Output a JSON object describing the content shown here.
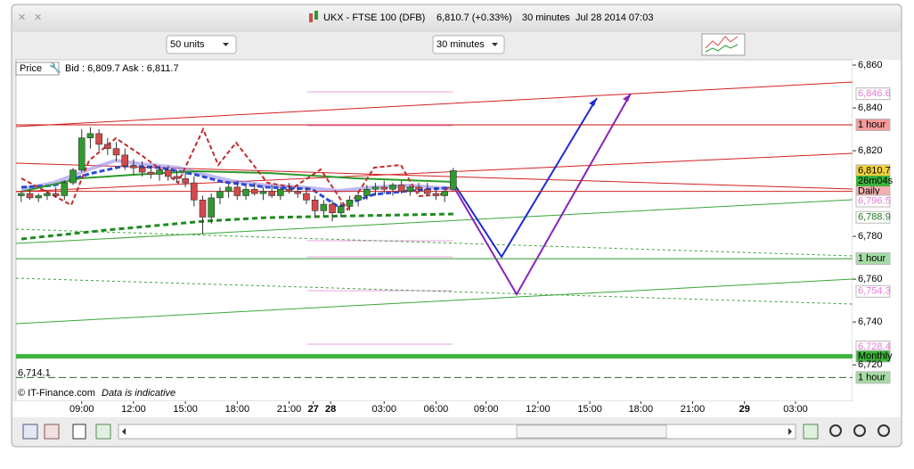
{
  "window": {
    "symbol": "UKX - FTSE 100 (DFB)",
    "price": "6,810.7 (+0.33%)",
    "interval": "30 minutes",
    "time": "Jul 28 2014 07:03"
  },
  "toolbar": {
    "units": "50 units",
    "interval": "30 minutes"
  },
  "chart_data": {
    "type": "candlestick",
    "legend": "Price",
    "quote": "Bid : 6,809.7  Ask : 6,811.7",
    "footer": "© IT-Finance.com",
    "note": "Data is indicative",
    "open": [
      6799,
      6800,
      6798,
      6799,
      6800,
      6799,
      6805,
      6811,
      6826,
      6828,
      6823,
      6821,
      6818,
      6813,
      6812,
      6810,
      6809,
      6811,
      6808,
      6807,
      6805,
      6797,
      6789,
      6798,
      6801,
      6803,
      6799,
      6802,
      6800,
      6801,
      6799,
      6802,
      6801,
      6800,
      6797,
      6792,
      6795,
      6791,
      6794,
      6797,
      6799,
      6802,
      6803,
      6802,
      6804,
      6801,
      6803,
      6802,
      6800,
      6799,
      6802
    ],
    "high": [
      6801,
      6802,
      6800,
      6801,
      6803,
      6806,
      6812,
      6830,
      6831,
      6830,
      6826,
      6824,
      6821,
      6816,
      6815,
      6813,
      6813,
      6813,
      6811,
      6810,
      6808,
      6799,
      6800,
      6803,
      6805,
      6806,
      6804,
      6805,
      6803,
      6804,
      6803,
      6805,
      6804,
      6803,
      6799,
      6797,
      6797,
      6796,
      6799,
      6801,
      6804,
      6805,
      6806,
      6805,
      6806,
      6804,
      6805,
      6805,
      6803,
      6802,
      6812
    ],
    "low": [
      6796,
      6797,
      6796,
      6797,
      6798,
      6797,
      6804,
      6810,
      6821,
      6820,
      6818,
      6815,
      6811,
      6809,
      6808,
      6807,
      6806,
      6806,
      6805,
      6803,
      6794,
      6781,
      6786,
      6795,
      6798,
      6797,
      6797,
      6799,
      6797,
      6798,
      6797,
      6800,
      6798,
      6795,
      6789,
      6789,
      6787,
      6789,
      6792,
      6794,
      6797,
      6799,
      6800,
      6799,
      6800,
      6799,
      6800,
      6799,
      6797,
      6796,
      6801
    ],
    "close": [
      6800,
      6798,
      6799,
      6800,
      6799,
      6805,
      6811,
      6826,
      6828,
      6823,
      6821,
      6818,
      6813,
      6812,
      6810,
      6809,
      6811,
      6808,
      6807,
      6805,
      6797,
      6789,
      6798,
      6801,
      6803,
      6799,
      6802,
      6800,
      6801,
      6799,
      6802,
      6801,
      6800,
      6797,
      6792,
      6795,
      6791,
      6794,
      6797,
      6799,
      6802,
      6803,
      6802,
      6804,
      6801,
      6803,
      6802,
      6800,
      6799,
      6801,
      6810.7
    ],
    "up_color": "#2f9a2f",
    "down_color": "#d24a4a",
    "xlim": [
      -0.6,
      96.2
    ],
    "xticks": [
      {
        "value": 7,
        "label": "09:00"
      },
      {
        "value": 13,
        "label": "12:00"
      },
      {
        "value": 19,
        "label": "15:00"
      },
      {
        "value": 25,
        "label": "18:00"
      },
      {
        "value": 31,
        "label": "21:00"
      },
      {
        "value": 33.8,
        "label": "27"
      },
      {
        "value": 35.8,
        "label": "28"
      },
      {
        "value": 42,
        "label": "03:00"
      },
      {
        "value": 48,
        "label": "06:00"
      },
      {
        "value": 53.8,
        "label": "09:00"
      },
      {
        "value": 59.8,
        "label": "12:00"
      },
      {
        "value": 65.8,
        "label": "15:00"
      },
      {
        "value": 71.7,
        "label": "18:00"
      },
      {
        "value": 77.7,
        "label": "21:00"
      },
      {
        "value": 83.7,
        "label": "29"
      },
      {
        "value": 89.6,
        "label": "03:00"
      }
    ],
    "ylim": [
      6703,
      6862.5
    ],
    "yticks": [
      {
        "value": 6860,
        "label": "6,860"
      },
      {
        "value": 6840,
        "label": "6,840"
      },
      {
        "value": 6820,
        "label": "6,820"
      },
      {
        "value": 6780,
        "label": "6,780"
      },
      {
        "value": 6760,
        "label": "6,760"
      },
      {
        "value": 6740,
        "label": "6,740"
      },
      {
        "value": 6720,
        "label": "6,720"
      }
    ],
    "levels": [
      {
        "value": 6846.6,
        "label": "6,846.6",
        "text_color": "#e87ad8",
        "fill": "#ffffff"
      },
      {
        "value": 6832.1,
        "label": "1 hour",
        "text_color": "#000000",
        "fill": "#f49a9a",
        "line": "#cc1010"
      },
      {
        "value": 6801,
        "label": "Daily",
        "text_color": "#000000",
        "fill": "#f2b0b0",
        "line": "#d02020"
      },
      {
        "value": 6810.7,
        "label": "6,810.7",
        "text_color": "#000000",
        "fill": "#f2d23c"
      },
      {
        "value": 6796.5,
        "label": "6,796.5",
        "text_color": "#e87ad8",
        "fill": "#ffffff"
      },
      {
        "value": 6788.9,
        "label": "6,788.9",
        "text_color": "#1f7a1f",
        "fill": "#ffffff"
      },
      {
        "value": 6769.6,
        "label": "1 hour",
        "text_color": "#000000",
        "fill": "#a6dca6",
        "line": "#2a9a2a"
      },
      {
        "value": 6754.3,
        "label": "6,754.3",
        "text_color": "#e87ad8",
        "fill": "#ffffff"
      },
      {
        "value": 6728.4,
        "label": "6,728.4",
        "text_color": "#e87ad8",
        "fill": "#ffffff"
      },
      {
        "value": 6724,
        "label": "Monthly",
        "text_color": "#000000",
        "fill": "#3cb43c",
        "line": "#3cb43c",
        "line_width": 5
      },
      {
        "value": 6714.1,
        "label": "1 hour",
        "left_label": "6,714.1",
        "text_color": "#000000",
        "fill": "#a6dca6",
        "line": "#2a6a2a",
        "dashed": true
      }
    ],
    "countdown": "26m04s"
  }
}
